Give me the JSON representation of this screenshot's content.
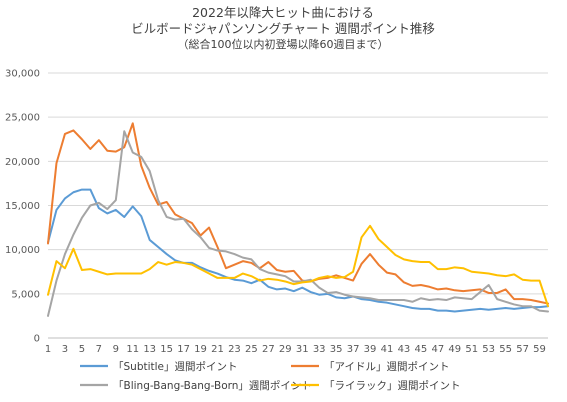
{
  "chart_data": {
    "type": "line",
    "title_lines": [
      "2022年以降大ヒット曲における",
      "ビルボードジャパンソングチャート 週間ポイント推移"
    ],
    "subtitle": "（総合100位以内初登場以降60週目まで）",
    "xlabel": "",
    "ylabel": "",
    "ylim": [
      0,
      30000
    ],
    "yticks": [
      "0",
      "5,000",
      "10,000",
      "15,000",
      "20,000",
      "25,000",
      "30,000"
    ],
    "ytick_values": [
      0,
      5000,
      10000,
      15000,
      20000,
      25000,
      30000
    ],
    "xlim": [
      1,
      60
    ],
    "xticks": [
      1,
      3,
      5,
      7,
      9,
      11,
      13,
      15,
      17,
      19,
      21,
      23,
      25,
      27,
      29,
      31,
      33,
      35,
      37,
      39,
      41,
      43,
      45,
      47,
      49,
      51,
      53,
      55,
      57,
      59
    ],
    "grid": true,
    "legend_position": "bottom",
    "series": [
      {
        "name": "「Subtitle」週間ポイント",
        "color": "#5b9bd5",
        "values": [
          10800,
          14500,
          15800,
          16500,
          16800,
          16800,
          14700,
          14100,
          14500,
          13700,
          14900,
          13800,
          11100,
          10300,
          9500,
          8800,
          8500,
          8500,
          8000,
          7600,
          7300,
          6900,
          6600,
          6500,
          6200,
          6600,
          5800,
          5500,
          5600,
          5300,
          5700,
          5200,
          4900,
          5000,
          4600,
          4500,
          4700,
          4400,
          4300,
          4100,
          4000,
          3800,
          3600,
          3400,
          3300,
          3300,
          3100,
          3100,
          3000,
          3100,
          3200,
          3300,
          3200,
          3300,
          3400,
          3300,
          3400,
          3500,
          3500,
          3600
        ]
      },
      {
        "name": "「アイドル」週間ポイント",
        "color": "#ed7d31",
        "values": [
          10700,
          19800,
          23100,
          23500,
          22500,
          21400,
          22400,
          21200,
          21100,
          21600,
          24300,
          19500,
          17000,
          15100,
          15400,
          14000,
          13500,
          13000,
          11600,
          12500,
          10300,
          7900,
          8300,
          8700,
          8500,
          7900,
          8600,
          7700,
          7500,
          7600,
          6500,
          6400,
          6700,
          6800,
          7100,
          6800,
          6500,
          8400,
          9500,
          8300,
          7400,
          7200,
          6300,
          5900,
          6000,
          5800,
          5500,
          5600,
          5400,
          5300,
          5400,
          5500,
          5100,
          5100,
          5500,
          4400,
          4400,
          4300,
          4100,
          3900
        ]
      },
      {
        "name": "「Bling-Bang-Bang-Born」週間ポイント",
        "color": "#a5a5a5",
        "values": [
          2500,
          6500,
          9500,
          11700,
          13600,
          15000,
          15300,
          14600,
          15600,
          23400,
          21000,
          20500,
          18900,
          15600,
          13700,
          13400,
          13500,
          12300,
          11400,
          10200,
          9900,
          9800,
          9500,
          9100,
          8900,
          7800,
          7400,
          7200,
          7000,
          6400,
          6400,
          6600,
          5700,
          5100,
          5200,
          4900,
          4700,
          4600,
          4500,
          4300,
          4300,
          4300,
          4300,
          4100,
          4500,
          4300,
          4400,
          4300,
          4600,
          4500,
          4400,
          5200,
          6000,
          4400,
          4100,
          3800,
          3600,
          3600,
          3100,
          3000
        ]
      },
      {
        "name": "「ライラック」週間ポイント",
        "color": "#ffc000",
        "values": [
          4900,
          8700,
          7900,
          10100,
          7700,
          7800,
          7500,
          7200,
          7300,
          7300,
          7300,
          7300,
          7800,
          8600,
          8300,
          8600,
          8500,
          8300,
          7800,
          7300,
          6800,
          6800,
          6800,
          7300,
          7000,
          6500,
          6700,
          6600,
          6400,
          6100,
          6300,
          6400,
          6800,
          7000,
          6800,
          6900,
          7500,
          11400,
          12700,
          11200,
          10300,
          9400,
          8900,
          8700,
          8600,
          8600,
          7800,
          7800,
          8000,
          7900,
          7500,
          7400,
          7300,
          7100,
          7000,
          7200,
          6600,
          6500,
          6500,
          3600
        ]
      }
    ]
  }
}
